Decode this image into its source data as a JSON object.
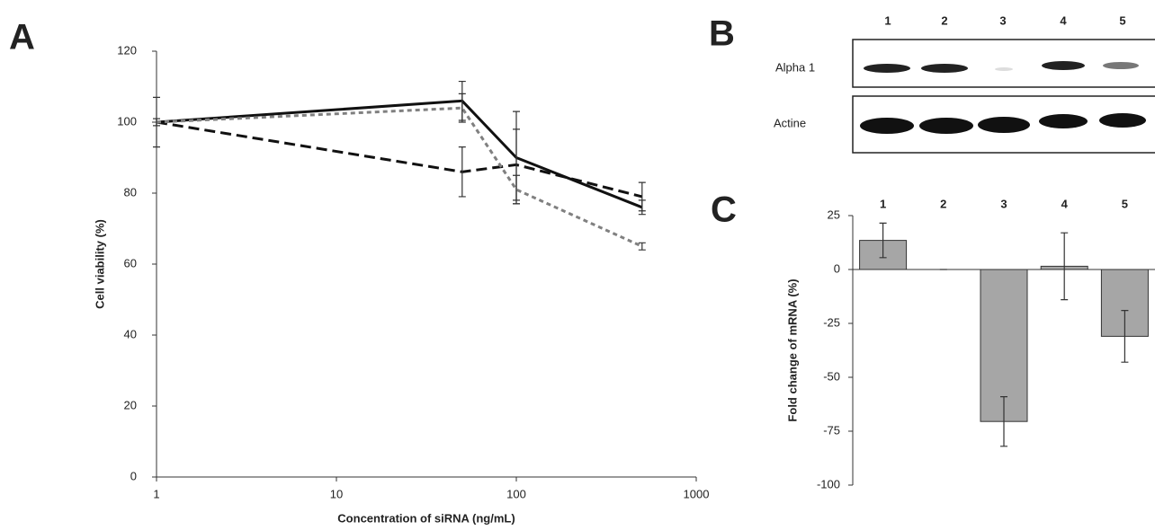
{
  "panel_labels": [
    "A",
    "B",
    "C"
  ],
  "blot": {
    "lanes": [
      "1",
      "2",
      "3",
      "4",
      "5"
    ],
    "rows": [
      "Alpha 1",
      "Actine"
    ]
  },
  "chart_data": [
    {
      "type": "line",
      "xlabel": "Concentration of siRNA  (ng/mL)",
      "ylabel": "Cell viability (%)",
      "xscale": "log",
      "x": [
        1,
        50,
        100,
        500
      ],
      "xlim": [
        1,
        1000
      ],
      "xticks": [
        1,
        10,
        100,
        1000
      ],
      "ylim": [
        0,
        120
      ],
      "yticks": [
        0,
        20,
        40,
        60,
        80,
        100,
        120
      ],
      "series": [
        {
          "color": "#111111",
          "linestyle": "solid",
          "values": [
            100,
            106,
            90,
            76
          ],
          "errors": [
            1,
            5.5,
            13,
            2
          ]
        },
        {
          "color": "#111111",
          "linestyle": "dashed",
          "values": [
            100,
            86,
            88,
            79
          ],
          "errors": [
            7,
            7,
            10,
            4
          ]
        },
        {
          "color": "#808080",
          "linestyle": "dotted",
          "values": [
            100,
            104,
            81,
            65
          ],
          "errors": [
            1,
            4,
            4,
            1
          ]
        }
      ]
    },
    {
      "type": "bar",
      "ylabel": "Fold change of mRNA (%)",
      "categories": [
        "1",
        "2",
        "3",
        "4",
        "5"
      ],
      "values": [
        13.5,
        0,
        -70.5,
        1.5,
        -31
      ],
      "errors": [
        8,
        0,
        11.5,
        15.5,
        12
      ],
      "color": "#a6a6a6",
      "ylim": [
        -100,
        25
      ],
      "yticks": [
        -100,
        -75,
        -50,
        -25,
        0,
        25
      ]
    }
  ]
}
